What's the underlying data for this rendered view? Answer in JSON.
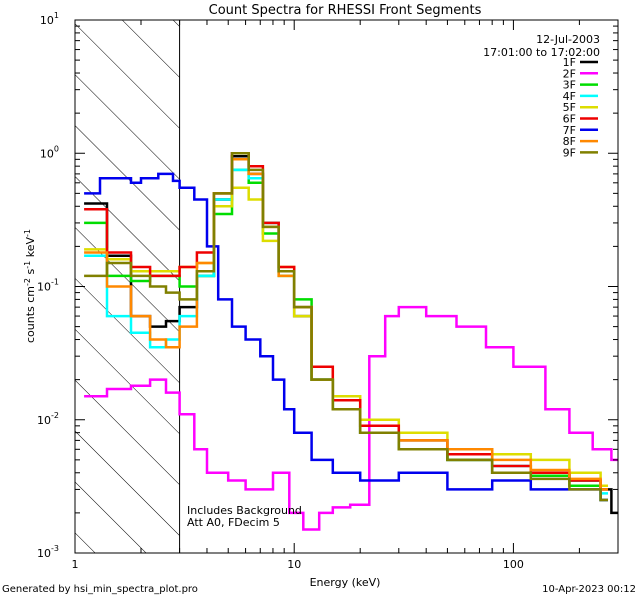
{
  "footer": {
    "left": "Generated by hsi_min_spectra_plot.pro",
    "right": "10-Apr-2023 00:12"
  },
  "chart_data": {
    "type": "line",
    "title": "Count Spectra for RHESSI Front Segments",
    "xlabel": "Energy (keV)",
    "ylabel": "counts cm-2 s-1 keV-1",
    "xscale": "log",
    "yscale": "log",
    "xlim": [
      1,
      300
    ],
    "ylim": [
      0.001,
      10
    ],
    "x_tick_labels": [
      {
        "value": 1,
        "label": "1"
      },
      {
        "value": 10,
        "label": "10"
      },
      {
        "value": 100,
        "label": "100"
      }
    ],
    "y_tick_labels": [
      {
        "value": 0.001,
        "base": "10",
        "exp": "-3"
      },
      {
        "value": 0.01,
        "base": "10",
        "exp": "-2"
      },
      {
        "value": 0.1,
        "base": "10",
        "exp": "-1"
      },
      {
        "value": 1,
        "base": "10",
        "exp": "0"
      },
      {
        "value": 10,
        "base": "10",
        "exp": "1"
      }
    ],
    "date": "12-Jul-2003",
    "time_range": "17:01:00 to 17:02:00",
    "annotations": [
      "Includes Background",
      "Att A0, FDecim 5"
    ],
    "hatched_region_max_kev": 3,
    "series": [
      {
        "name": "1F",
        "color": "#000000",
        "x": [
          1.1,
          1.4,
          1.8,
          2.2,
          2.6,
          3.0,
          3.6,
          4.3,
          5.2,
          6.2,
          7.2,
          8.5,
          10.0,
          12.0,
          15.0,
          20.0,
          30.0,
          50.0,
          80.0,
          120.0,
          180.0,
          250.0,
          280.0
        ],
        "y": [
          0.42,
          0.17,
          0.06,
          0.05,
          0.055,
          0.07,
          0.12,
          0.45,
          0.95,
          0.7,
          0.3,
          0.13,
          0.06,
          0.02,
          0.012,
          0.008,
          0.006,
          0.005,
          0.004,
          0.004,
          0.0035,
          0.003,
          0.002
        ]
      },
      {
        "name": "2F",
        "color": "#ff00ff",
        "x": [
          1.1,
          1.4,
          1.8,
          2.2,
          2.6,
          3.0,
          3.5,
          4.0,
          5.0,
          6.0,
          8.0,
          9.5,
          11.0,
          13.0,
          15.0,
          18.0,
          22.0,
          26.0,
          30.0,
          40.0,
          55.0,
          75.0,
          100.0,
          140.0,
          180.0,
          230.0,
          280.0
        ],
        "y": [
          0.015,
          0.017,
          0.018,
          0.02,
          0.016,
          0.011,
          0.006,
          0.004,
          0.0035,
          0.003,
          0.004,
          0.002,
          0.0015,
          0.002,
          0.0022,
          0.0023,
          0.03,
          0.06,
          0.07,
          0.06,
          0.05,
          0.035,
          0.025,
          0.012,
          0.008,
          0.006,
          0.005
        ]
      },
      {
        "name": "3F",
        "color": "#00dd00",
        "x": [
          1.1,
          1.4,
          1.8,
          2.2,
          2.6,
          3.0,
          3.6,
          4.3,
          5.2,
          6.2,
          7.2,
          8.5,
          10.0,
          12.0,
          15.0,
          20.0,
          30.0,
          50.0,
          80.0,
          120.0,
          180.0,
          250.0
        ],
        "y": [
          0.3,
          0.12,
          0.11,
          0.12,
          0.12,
          0.1,
          0.12,
          0.35,
          0.75,
          0.6,
          0.25,
          0.12,
          0.08,
          0.02,
          0.012,
          0.008,
          0.006,
          0.005,
          0.004,
          0.0038,
          0.0032,
          0.0025
        ]
      },
      {
        "name": "4F",
        "color": "#00ffff",
        "x": [
          1.1,
          1.4,
          1.8,
          2.2,
          2.6,
          3.0,
          3.6,
          4.3,
          5.2,
          6.2,
          7.2,
          8.5,
          10.0,
          12.0,
          15.0,
          20.0,
          30.0,
          50.0,
          80.0,
          120.0,
          180.0,
          250.0
        ],
        "y": [
          0.17,
          0.06,
          0.045,
          0.035,
          0.04,
          0.06,
          0.12,
          0.45,
          0.75,
          0.65,
          0.3,
          0.13,
          0.07,
          0.02,
          0.012,
          0.008,
          0.007,
          0.0055,
          0.0045,
          0.004,
          0.0035,
          0.0028
        ]
      },
      {
        "name": "5F",
        "color": "#dddd00",
        "x": [
          1.1,
          1.4,
          1.8,
          2.2,
          2.6,
          3.0,
          3.6,
          4.3,
          5.2,
          6.2,
          7.2,
          8.5,
          10.0,
          12.0,
          15.0,
          20.0,
          30.0,
          50.0,
          80.0,
          120.0,
          180.0,
          250.0
        ],
        "y": [
          0.19,
          0.16,
          0.13,
          0.13,
          0.13,
          0.14,
          0.15,
          0.4,
          0.55,
          0.45,
          0.22,
          0.14,
          0.06,
          0.025,
          0.015,
          0.01,
          0.008,
          0.006,
          0.0055,
          0.005,
          0.004,
          0.0032
        ]
      },
      {
        "name": "6F",
        "color": "#ee0000",
        "x": [
          1.1,
          1.4,
          1.8,
          2.2,
          2.6,
          3.0,
          3.6,
          4.3,
          5.2,
          6.2,
          7.2,
          8.5,
          10.0,
          12.0,
          15.0,
          20.0,
          30.0,
          50.0,
          80.0,
          120.0,
          180.0,
          250.0
        ],
        "y": [
          0.38,
          0.18,
          0.14,
          0.12,
          0.12,
          0.14,
          0.18,
          0.5,
          1.0,
          0.8,
          0.3,
          0.14,
          0.07,
          0.025,
          0.014,
          0.009,
          0.007,
          0.0055,
          0.0045,
          0.004,
          0.0035,
          0.003
        ]
      },
      {
        "name": "7F",
        "color": "#0000ee",
        "x": [
          1.1,
          1.3,
          1.5,
          1.8,
          2.0,
          2.4,
          2.8,
          3.0,
          3.5,
          4.0,
          4.5,
          5.2,
          6.0,
          7.0,
          8.0,
          9.0,
          10.0,
          12.0,
          15.0,
          20.0,
          30.0,
          50.0,
          80.0,
          120.0,
          180.0,
          250.0
        ],
        "y": [
          0.5,
          0.65,
          0.65,
          0.6,
          0.65,
          0.7,
          0.62,
          0.55,
          0.45,
          0.2,
          0.08,
          0.05,
          0.04,
          0.03,
          0.02,
          0.012,
          0.008,
          0.005,
          0.004,
          0.0035,
          0.004,
          0.003,
          0.0035,
          0.003,
          0.003,
          0.0025
        ]
      },
      {
        "name": "8F",
        "color": "#ff8800",
        "x": [
          1.1,
          1.4,
          1.8,
          2.2,
          2.6,
          3.0,
          3.6,
          4.3,
          5.2,
          6.2,
          7.2,
          8.5,
          10.0,
          12.0,
          15.0,
          20.0,
          30.0,
          50.0,
          80.0,
          120.0,
          180.0,
          250.0
        ],
        "y": [
          0.18,
          0.1,
          0.06,
          0.04,
          0.035,
          0.05,
          0.15,
          0.5,
          0.9,
          0.7,
          0.28,
          0.12,
          0.07,
          0.02,
          0.012,
          0.008,
          0.007,
          0.006,
          0.005,
          0.0042,
          0.0036,
          0.003
        ]
      },
      {
        "name": "9F",
        "color": "#808000",
        "x": [
          1.1,
          1.4,
          1.8,
          2.2,
          2.6,
          3.0,
          3.6,
          4.3,
          5.2,
          6.2,
          7.2,
          8.5,
          10.0,
          12.0,
          15.0,
          20.0,
          30.0,
          50.0,
          80.0,
          120.0,
          180.0,
          250.0
        ],
        "y": [
          0.12,
          0.15,
          0.12,
          0.1,
          0.09,
          0.08,
          0.13,
          0.5,
          1.0,
          0.75,
          0.28,
          0.13,
          0.07,
          0.02,
          0.012,
          0.008,
          0.006,
          0.005,
          0.004,
          0.0036,
          0.003,
          0.0025
        ]
      }
    ]
  }
}
